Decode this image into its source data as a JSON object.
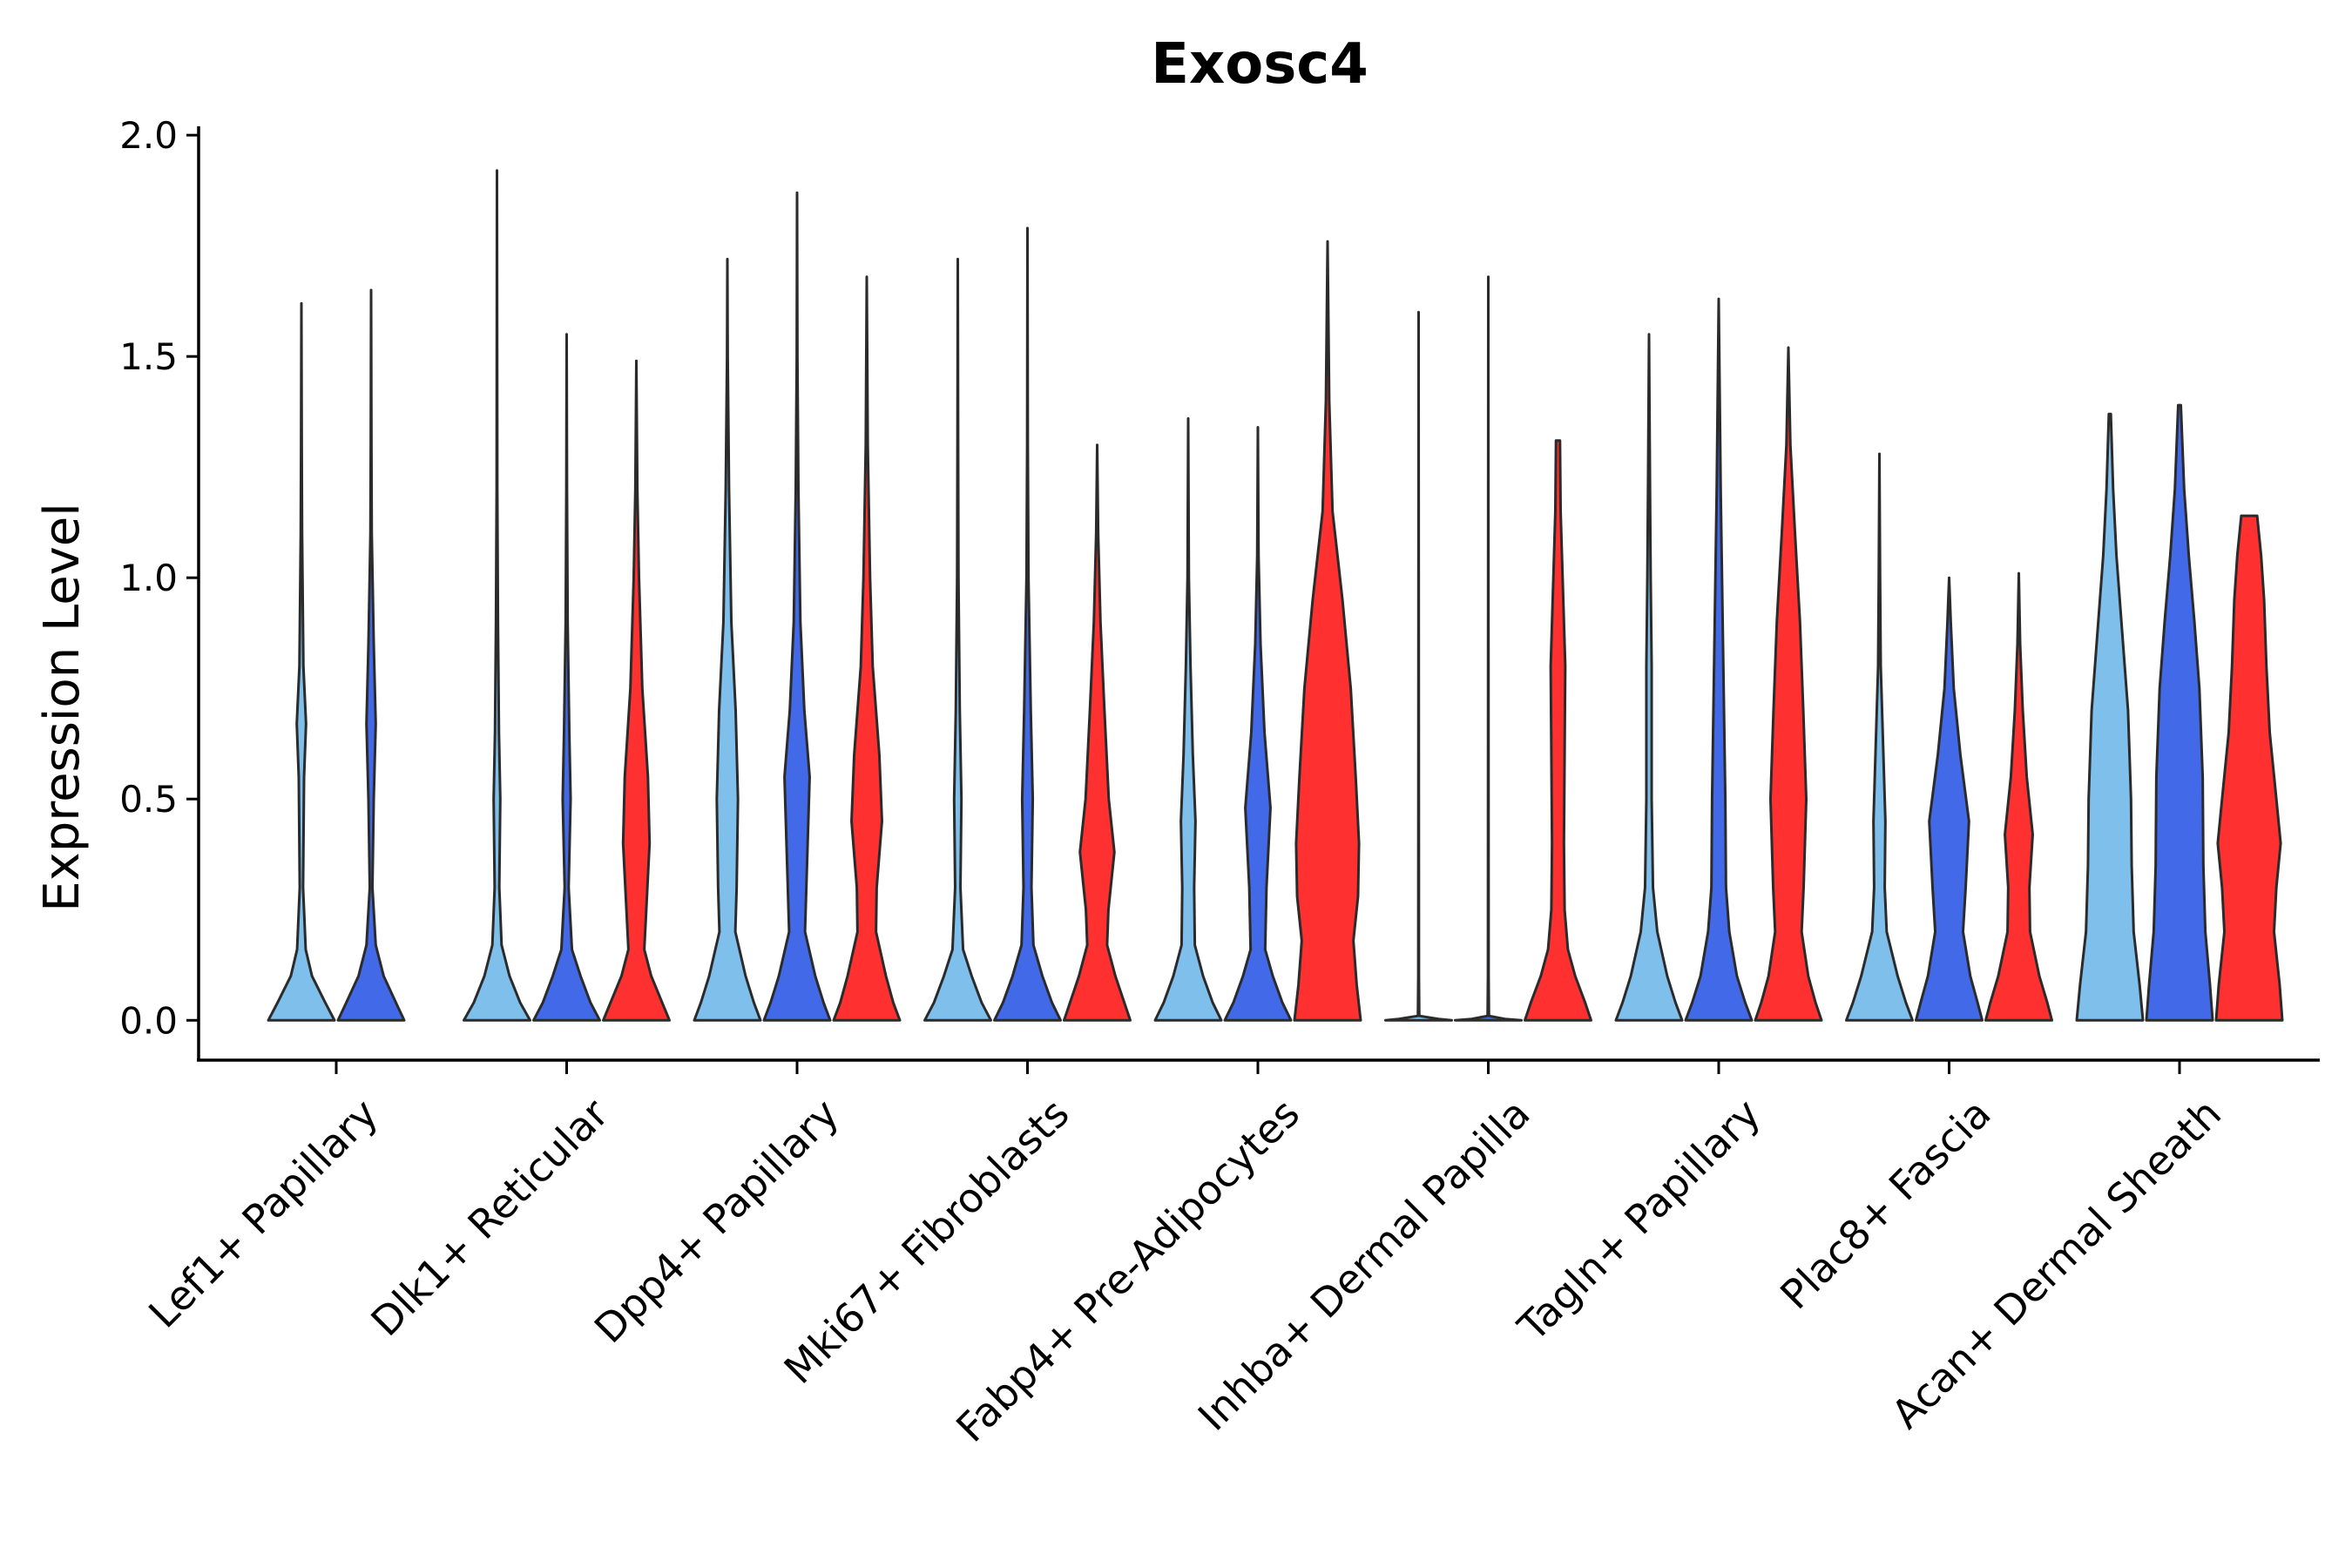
{
  "chart_data": {
    "type": "violin",
    "title": "Exosc4",
    "xlabel": "",
    "ylabel": "Expression Level",
    "ylim": [
      -0.09,
      2.02
    ],
    "yticks": [
      0.0,
      0.5,
      1.0,
      1.5,
      2.0
    ],
    "ytick_labels": [
      "0.0",
      "0.5",
      "1.0",
      "1.5",
      "2.0"
    ],
    "categories": [
      "Lef1+ Papillary",
      "Dlk1+ Reticular",
      "Dpp4+ Papillary",
      "Mki67+ Fibroblasts",
      "Fabp4+ Pre-Adipocytes",
      "Inhba+ Dermal Papilla",
      "Tagln+ Papillary",
      "Plac8+ Fascia",
      "Acan+ Dermal Sheath"
    ],
    "series_colors": [
      "#7fbfeb",
      "#4169e8",
      "#ff3030"
    ],
    "violins": [
      {
        "category": 0,
        "series": 0,
        "max": 1.62,
        "density": [
          [
            0,
            1.0
          ],
          [
            0.04,
            0.72
          ],
          [
            0.1,
            0.32
          ],
          [
            0.16,
            0.13
          ],
          [
            0.3,
            0.05
          ],
          [
            0.55,
            0.08
          ],
          [
            0.67,
            0.14
          ],
          [
            0.8,
            0.06
          ],
          [
            1.1,
            0.02
          ],
          [
            1.3,
            0.01
          ],
          [
            1.62,
            0
          ]
        ]
      },
      {
        "category": 0,
        "series": 1,
        "max": 1.65,
        "density": [
          [
            0,
            1.0
          ],
          [
            0.04,
            0.75
          ],
          [
            0.1,
            0.38
          ],
          [
            0.17,
            0.14
          ],
          [
            0.3,
            0.04
          ],
          [
            0.5,
            0.08
          ],
          [
            0.67,
            0.14
          ],
          [
            0.85,
            0.08
          ],
          [
            1.1,
            0.02
          ],
          [
            1.3,
            0.01
          ],
          [
            1.65,
            0
          ]
        ]
      },
      {
        "category": 1,
        "series": 0,
        "max": 1.92,
        "density": [
          [
            0,
            1.0
          ],
          [
            0.04,
            0.7
          ],
          [
            0.1,
            0.38
          ],
          [
            0.17,
            0.14
          ],
          [
            0.3,
            0.07
          ],
          [
            0.5,
            0.1
          ],
          [
            0.65,
            0.06
          ],
          [
            0.9,
            0.03
          ],
          [
            1.2,
            0.01
          ],
          [
            1.92,
            0
          ]
        ]
      },
      {
        "category": 1,
        "series": 1,
        "max": 1.55,
        "density": [
          [
            0,
            1.0
          ],
          [
            0.04,
            0.72
          ],
          [
            0.1,
            0.42
          ],
          [
            0.16,
            0.16
          ],
          [
            0.3,
            0.06
          ],
          [
            0.5,
            0.12
          ],
          [
            0.65,
            0.08
          ],
          [
            0.9,
            0.03
          ],
          [
            1.2,
            0.01
          ],
          [
            1.55,
            0
          ]
        ]
      },
      {
        "category": 1,
        "series": 2,
        "max": 1.49,
        "density": [
          [
            0,
            1.0
          ],
          [
            0.04,
            0.78
          ],
          [
            0.1,
            0.45
          ],
          [
            0.16,
            0.24
          ],
          [
            0.25,
            0.3
          ],
          [
            0.4,
            0.4
          ],
          [
            0.55,
            0.35
          ],
          [
            0.75,
            0.18
          ],
          [
            1.0,
            0.08
          ],
          [
            1.2,
            0.03
          ],
          [
            1.49,
            0
          ]
        ]
      },
      {
        "category": 2,
        "series": 0,
        "max": 1.72,
        "density": [
          [
            0,
            1.0
          ],
          [
            0.04,
            0.8
          ],
          [
            0.1,
            0.55
          ],
          [
            0.2,
            0.24
          ],
          [
            0.3,
            0.28
          ],
          [
            0.5,
            0.32
          ],
          [
            0.7,
            0.25
          ],
          [
            0.9,
            0.12
          ],
          [
            1.2,
            0.05
          ],
          [
            1.5,
            0.01
          ],
          [
            1.72,
            0
          ]
        ]
      },
      {
        "category": 2,
        "series": 1,
        "max": 1.87,
        "density": [
          [
            0,
            1.0
          ],
          [
            0.04,
            0.8
          ],
          [
            0.1,
            0.55
          ],
          [
            0.2,
            0.24
          ],
          [
            0.35,
            0.3
          ],
          [
            0.55,
            0.38
          ],
          [
            0.7,
            0.22
          ],
          [
            0.9,
            0.1
          ],
          [
            1.2,
            0.04
          ],
          [
            1.5,
            0.01
          ],
          [
            1.87,
            0
          ]
        ]
      },
      {
        "category": 2,
        "series": 2,
        "max": 1.68,
        "density": [
          [
            0,
            1.0
          ],
          [
            0.04,
            0.8
          ],
          [
            0.1,
            0.58
          ],
          [
            0.2,
            0.28
          ],
          [
            0.3,
            0.3
          ],
          [
            0.45,
            0.46
          ],
          [
            0.6,
            0.38
          ],
          [
            0.8,
            0.18
          ],
          [
            1.0,
            0.1
          ],
          [
            1.3,
            0.03
          ],
          [
            1.68,
            0
          ]
        ]
      },
      {
        "category": 3,
        "series": 0,
        "max": 1.72,
        "density": [
          [
            0,
            1.0
          ],
          [
            0.04,
            0.72
          ],
          [
            0.1,
            0.42
          ],
          [
            0.16,
            0.16
          ],
          [
            0.3,
            0.08
          ],
          [
            0.5,
            0.11
          ],
          [
            0.7,
            0.06
          ],
          [
            1.0,
            0.02
          ],
          [
            1.3,
            0.01
          ],
          [
            1.72,
            0
          ]
        ]
      },
      {
        "category": 3,
        "series": 1,
        "max": 1.79,
        "density": [
          [
            0,
            1.0
          ],
          [
            0.04,
            0.74
          ],
          [
            0.1,
            0.45
          ],
          [
            0.17,
            0.18
          ],
          [
            0.3,
            0.12
          ],
          [
            0.5,
            0.16
          ],
          [
            0.7,
            0.1
          ],
          [
            1.0,
            0.03
          ],
          [
            1.3,
            0.01
          ],
          [
            1.79,
            0
          ]
        ]
      },
      {
        "category": 3,
        "series": 2,
        "max": 1.3,
        "density": [
          [
            0,
            1.0
          ],
          [
            0.04,
            0.82
          ],
          [
            0.1,
            0.55
          ],
          [
            0.17,
            0.3
          ],
          [
            0.25,
            0.34
          ],
          [
            0.38,
            0.52
          ],
          [
            0.5,
            0.35
          ],
          [
            0.7,
            0.22
          ],
          [
            0.9,
            0.1
          ],
          [
            1.1,
            0.03
          ],
          [
            1.3,
            0
          ]
        ]
      },
      {
        "category": 4,
        "series": 0,
        "max": 1.36,
        "density": [
          [
            0,
            1.0
          ],
          [
            0.04,
            0.74
          ],
          [
            0.1,
            0.45
          ],
          [
            0.17,
            0.2
          ],
          [
            0.3,
            0.18
          ],
          [
            0.45,
            0.22
          ],
          [
            0.6,
            0.14
          ],
          [
            0.8,
            0.07
          ],
          [
            1.0,
            0.02
          ],
          [
            1.36,
            0
          ]
        ]
      },
      {
        "category": 4,
        "series": 1,
        "max": 1.34,
        "density": [
          [
            0,
            1.0
          ],
          [
            0.04,
            0.74
          ],
          [
            0.1,
            0.45
          ],
          [
            0.16,
            0.22
          ],
          [
            0.3,
            0.26
          ],
          [
            0.48,
            0.38
          ],
          [
            0.65,
            0.2
          ],
          [
            0.85,
            0.08
          ],
          [
            1.05,
            0.02
          ],
          [
            1.34,
            0
          ]
        ]
      },
      {
        "category": 4,
        "series": 2,
        "max": 1.76,
        "density": [
          [
            0,
            1.0
          ],
          [
            0.08,
            0.88
          ],
          [
            0.18,
            0.78
          ],
          [
            0.28,
            0.92
          ],
          [
            0.4,
            0.95
          ],
          [
            0.55,
            0.85
          ],
          [
            0.75,
            0.7
          ],
          [
            0.95,
            0.45
          ],
          [
            1.15,
            0.15
          ],
          [
            1.4,
            0.05
          ],
          [
            1.76,
            0
          ]
        ]
      },
      {
        "category": 5,
        "series": 0,
        "max": 1.6,
        "density": [
          [
            0,
            1.0
          ],
          [
            0.003,
            0.6
          ],
          [
            0.01,
            0.02
          ],
          [
            0.1,
            0.01
          ],
          [
            1.6,
            0
          ]
        ]
      },
      {
        "category": 5,
        "series": 1,
        "max": 1.68,
        "density": [
          [
            0,
            1.0
          ],
          [
            0.003,
            0.5
          ],
          [
            0.01,
            0.02
          ],
          [
            0.1,
            0.01
          ],
          [
            1.68,
            0
          ]
        ]
      },
      {
        "category": 5,
        "series": 2,
        "max": 1.31,
        "density": [
          [
            0,
            1.0
          ],
          [
            0.04,
            0.82
          ],
          [
            0.1,
            0.52
          ],
          [
            0.16,
            0.3
          ],
          [
            0.25,
            0.2
          ],
          [
            0.4,
            0.18
          ],
          [
            0.6,
            0.2
          ],
          [
            0.8,
            0.22
          ],
          [
            1.0,
            0.14
          ],
          [
            1.15,
            0.08
          ],
          [
            1.31,
            0.06
          ]
        ]
      },
      {
        "category": 6,
        "series": 0,
        "max": 1.55,
        "density": [
          [
            0,
            1.0
          ],
          [
            0.04,
            0.8
          ],
          [
            0.1,
            0.55
          ],
          [
            0.2,
            0.25
          ],
          [
            0.3,
            0.12
          ],
          [
            0.5,
            0.08
          ],
          [
            0.8,
            0.08
          ],
          [
            1.0,
            0.05
          ],
          [
            1.2,
            0.03
          ],
          [
            1.55,
            0
          ]
        ]
      },
      {
        "category": 6,
        "series": 1,
        "max": 1.63,
        "density": [
          [
            0,
            1.0
          ],
          [
            0.04,
            0.8
          ],
          [
            0.1,
            0.55
          ],
          [
            0.2,
            0.32
          ],
          [
            0.3,
            0.22
          ],
          [
            0.5,
            0.2
          ],
          [
            0.7,
            0.16
          ],
          [
            1.0,
            0.1
          ],
          [
            1.2,
            0.06
          ],
          [
            1.63,
            0
          ]
        ]
      },
      {
        "category": 6,
        "series": 2,
        "max": 1.52,
        "density": [
          [
            0,
            1.0
          ],
          [
            0.04,
            0.82
          ],
          [
            0.1,
            0.6
          ],
          [
            0.2,
            0.4
          ],
          [
            0.3,
            0.46
          ],
          [
            0.5,
            0.54
          ],
          [
            0.7,
            0.45
          ],
          [
            0.9,
            0.35
          ],
          [
            1.1,
            0.2
          ],
          [
            1.3,
            0.06
          ],
          [
            1.52,
            0
          ]
        ]
      },
      {
        "category": 7,
        "series": 0,
        "max": 1.28,
        "density": [
          [
            0,
            1.0
          ],
          [
            0.04,
            0.8
          ],
          [
            0.1,
            0.55
          ],
          [
            0.2,
            0.22
          ],
          [
            0.3,
            0.16
          ],
          [
            0.45,
            0.18
          ],
          [
            0.6,
            0.12
          ],
          [
            0.8,
            0.04
          ],
          [
            1.0,
            0.02
          ],
          [
            1.28,
            0
          ]
        ]
      },
      {
        "category": 7,
        "series": 1,
        "max": 1.0,
        "density": [
          [
            0,
            1.0
          ],
          [
            0.04,
            0.86
          ],
          [
            0.1,
            0.64
          ],
          [
            0.2,
            0.42
          ],
          [
            0.3,
            0.5
          ],
          [
            0.45,
            0.6
          ],
          [
            0.6,
            0.34
          ],
          [
            0.75,
            0.14
          ],
          [
            0.9,
            0.05
          ],
          [
            1.0,
            0
          ]
        ]
      },
      {
        "category": 7,
        "series": 2,
        "max": 1.01,
        "density": [
          [
            0,
            1.0
          ],
          [
            0.04,
            0.86
          ],
          [
            0.1,
            0.62
          ],
          [
            0.2,
            0.34
          ],
          [
            0.3,
            0.32
          ],
          [
            0.42,
            0.42
          ],
          [
            0.55,
            0.24
          ],
          [
            0.7,
            0.12
          ],
          [
            0.85,
            0.04
          ],
          [
            1.01,
            0
          ]
        ]
      },
      {
        "category": 8,
        "series": 0,
        "max": 1.37,
        "density": [
          [
            0,
            1.0
          ],
          [
            0.08,
            0.9
          ],
          [
            0.2,
            0.72
          ],
          [
            0.35,
            0.66
          ],
          [
            0.5,
            0.64
          ],
          [
            0.7,
            0.55
          ],
          [
            0.9,
            0.35
          ],
          [
            1.05,
            0.2
          ],
          [
            1.2,
            0.1
          ],
          [
            1.37,
            0.03
          ]
        ]
      },
      {
        "category": 8,
        "series": 1,
        "max": 1.39,
        "density": [
          [
            0,
            1.0
          ],
          [
            0.08,
            0.92
          ],
          [
            0.2,
            0.78
          ],
          [
            0.35,
            0.72
          ],
          [
            0.55,
            0.7
          ],
          [
            0.75,
            0.6
          ],
          [
            0.9,
            0.45
          ],
          [
            1.05,
            0.28
          ],
          [
            1.2,
            0.14
          ],
          [
            1.39,
            0.04
          ]
        ]
      },
      {
        "category": 8,
        "series": 2,
        "max": 1.14,
        "density": [
          [
            0,
            1.0
          ],
          [
            0.08,
            0.92
          ],
          [
            0.2,
            0.75
          ],
          [
            0.3,
            0.82
          ],
          [
            0.4,
            0.95
          ],
          [
            0.5,
            0.82
          ],
          [
            0.65,
            0.62
          ],
          [
            0.8,
            0.52
          ],
          [
            0.95,
            0.45
          ],
          [
            1.05,
            0.36
          ],
          [
            1.14,
            0.24
          ]
        ]
      }
    ]
  }
}
